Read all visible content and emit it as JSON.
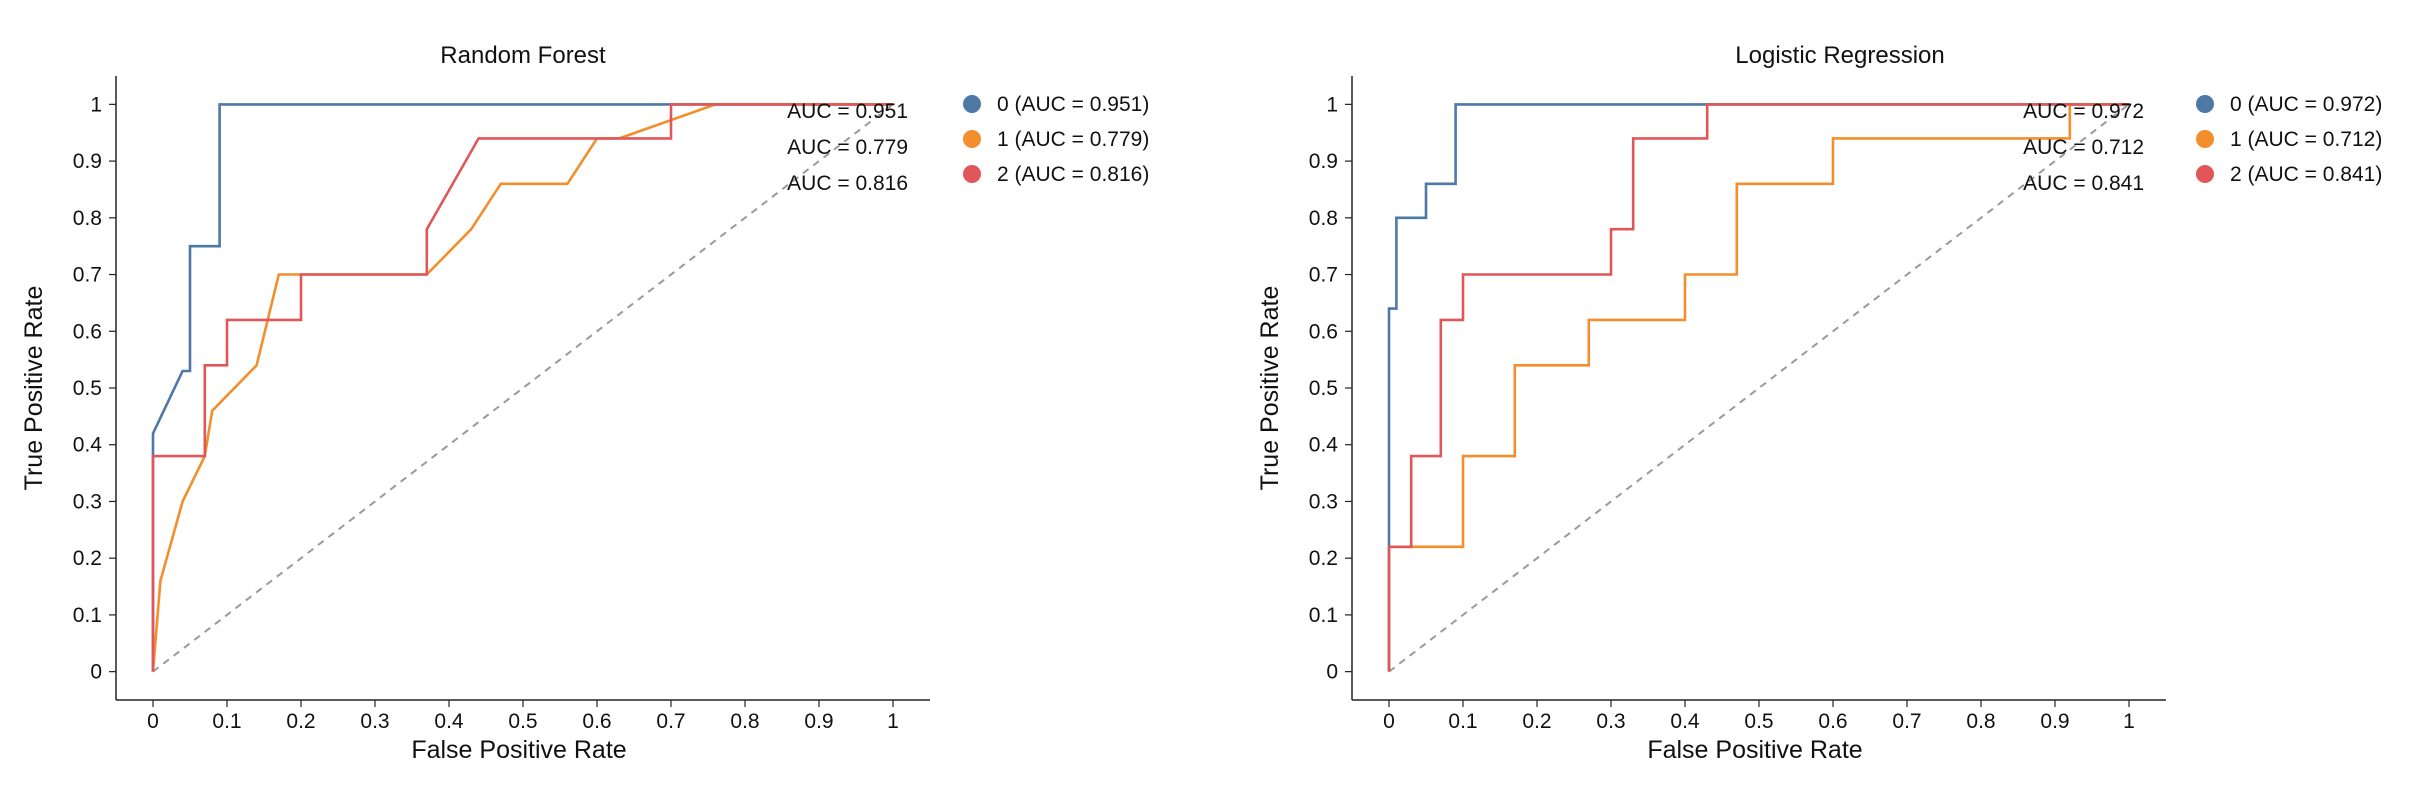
{
  "chart_data": [
    {
      "type": "line",
      "title": "Random Forest",
      "xlabel": "False Positive Rate",
      "ylabel": "True Positive Rate",
      "xlim": [
        -0.05,
        1.05
      ],
      "ylim": [
        -0.05,
        1.05
      ],
      "xticks": [
        "0",
        "0.1",
        "0.2",
        "0.3",
        "0.4",
        "0.5",
        "0.6",
        "0.7",
        "0.8",
        "0.9",
        "1"
      ],
      "yticks": [
        "0",
        "0.1",
        "0.2",
        "0.3",
        "0.4",
        "0.5",
        "0.6",
        "0.7",
        "0.8",
        "0.9",
        "1"
      ],
      "grid": false,
      "legend_position": "right",
      "reference_line": "diagonal dashed",
      "series": [
        {
          "name": "0 (AUC = 0.951)",
          "auc_label": "AUC = 0.951",
          "color": "#4e79a7",
          "x": [
            0,
            0,
            0.04,
            0.05,
            0.05,
            0.09,
            0.09,
            0.1,
            1.0
          ],
          "y": [
            0,
            0.42,
            0.53,
            0.53,
            0.75,
            0.75,
            1.0,
            1.0,
            1.0
          ]
        },
        {
          "name": "1 (AUC = 0.779)",
          "auc_label": "AUC = 0.779",
          "color": "#f28e2b",
          "x": [
            0,
            0.01,
            0.04,
            0.04,
            0.07,
            0.08,
            0.08,
            0.14,
            0.14,
            0.17,
            0.17,
            0.37,
            0.43,
            0.47,
            0.56,
            0.6,
            0.63,
            0.76,
            1.0
          ],
          "y": [
            0,
            0.16,
            0.3,
            0.3,
            0.38,
            0.46,
            0.46,
            0.54,
            0.54,
            0.7,
            0.7,
            0.7,
            0.78,
            0.86,
            0.86,
            0.94,
            0.94,
            1.0,
            1.0
          ]
        },
        {
          "name": "2 (AUC = 0.816)",
          "auc_label": "AUC = 0.816",
          "color": "#e15759",
          "x": [
            0,
            0,
            0.07,
            0.07,
            0.1,
            0.1,
            0.2,
            0.2,
            0.37,
            0.37,
            0.44,
            0.7,
            0.7,
            1.0
          ],
          "y": [
            0,
            0.38,
            0.38,
            0.54,
            0.54,
            0.62,
            0.62,
            0.7,
            0.7,
            0.78,
            0.94,
            0.94,
            1.0,
            1.0
          ]
        }
      ]
    },
    {
      "type": "line",
      "title": "Logistic Regression",
      "xlabel": "False Positive Rate",
      "ylabel": "True Positive Rate",
      "xlim": [
        -0.05,
        1.05
      ],
      "ylim": [
        -0.05,
        1.05
      ],
      "xticks": [
        "0",
        "0.1",
        "0.2",
        "0.3",
        "0.4",
        "0.5",
        "0.6",
        "0.7",
        "0.8",
        "0.9",
        "1"
      ],
      "yticks": [
        "0",
        "0.1",
        "0.2",
        "0.3",
        "0.4",
        "0.5",
        "0.6",
        "0.7",
        "0.8",
        "0.9",
        "1"
      ],
      "grid": false,
      "legend_position": "right",
      "reference_line": "diagonal dashed",
      "series": [
        {
          "name": "0 (AUC = 0.972)",
          "auc_label": "AUC = 0.972",
          "color": "#4e79a7",
          "x": [
            0,
            0,
            0.01,
            0.01,
            0.05,
            0.05,
            0.09,
            0.09,
            1.0
          ],
          "y": [
            0,
            0.64,
            0.64,
            0.8,
            0.8,
            0.86,
            0.86,
            1.0,
            1.0
          ]
        },
        {
          "name": "1 (AUC = 0.712)",
          "auc_label": "AUC = 0.712",
          "color": "#f28e2b",
          "x": [
            0,
            0.1,
            0.1,
            0.17,
            0.17,
            0.27,
            0.27,
            0.4,
            0.4,
            0.47,
            0.47,
            0.6,
            0.6,
            0.92,
            0.92,
            1.0
          ],
          "y": [
            0.22,
            0.22,
            0.38,
            0.38,
            0.54,
            0.54,
            0.62,
            0.62,
            0.7,
            0.7,
            0.86,
            0.86,
            0.94,
            0.94,
            1.0,
            1.0
          ]
        },
        {
          "name": "2 (AUC = 0.841)",
          "auc_label": "AUC = 0.841",
          "color": "#e15759",
          "x": [
            0,
            0,
            0.03,
            0.03,
            0.07,
            0.07,
            0.1,
            0.1,
            0.3,
            0.3,
            0.33,
            0.33,
            0.43,
            0.43,
            1.0
          ],
          "y": [
            0,
            0.22,
            0.22,
            0.38,
            0.38,
            0.62,
            0.62,
            0.7,
            0.7,
            0.78,
            0.78,
            0.94,
            0.94,
            1.0,
            1.0
          ]
        }
      ]
    }
  ]
}
